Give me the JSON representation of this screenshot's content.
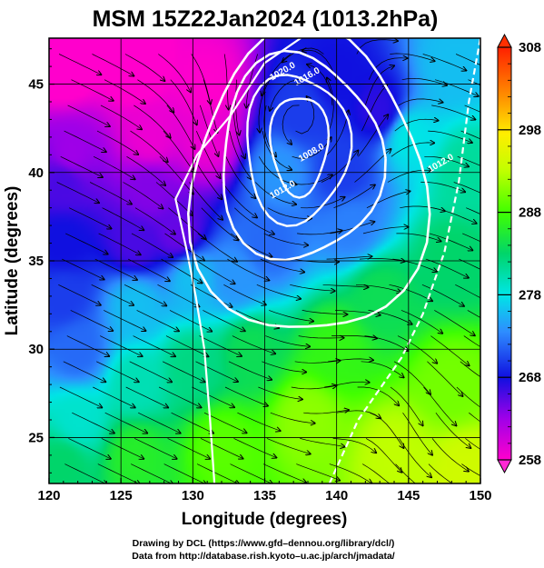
{
  "chart_data": {
    "type": "heatmap",
    "title": "MSM 15Z22Jan2024 (1013.2hPa)",
    "xlabel": "Longitude (degrees)",
    "ylabel": "Latitude  (degrees)",
    "xlim": [
      120,
      150
    ],
    "ylim": [
      22.4,
      47.6
    ],
    "xticks": [
      120,
      125,
      130,
      135,
      140,
      145,
      150
    ],
    "xtick_labels": [
      "120",
      "125",
      "130",
      "135",
      "140",
      "145",
      "150"
    ],
    "yticks": [
      25,
      30,
      35,
      40,
      45
    ],
    "ytick_labels": [
      "25",
      "30",
      "35",
      "40",
      "45"
    ],
    "grid": true,
    "field": {
      "name": "temperature",
      "unit": "K",
      "colorbar_range": [
        258,
        308
      ],
      "colorbar_ticks": [
        258,
        268,
        278,
        288,
        298,
        308
      ],
      "colorbar_tick_labels": [
        "258",
        "268",
        "278",
        "288",
        "298",
        "308"
      ],
      "control_points": [
        {
          "lon": 121,
          "lat": 46,
          "value": 257
        },
        {
          "lon": 126,
          "lat": 46,
          "value": 257
        },
        {
          "lon": 131,
          "lat": 45,
          "value": 258
        },
        {
          "lon": 131,
          "lat": 42,
          "value": 259
        },
        {
          "lon": 127,
          "lat": 42,
          "value": 259
        },
        {
          "lon": 121.5,
          "lat": 41,
          "value": 263
        },
        {
          "lon": 121,
          "lat": 39.5,
          "value": 266
        },
        {
          "lon": 127,
          "lat": 39,
          "value": 264
        },
        {
          "lon": 126,
          "lat": 36,
          "value": 266
        },
        {
          "lon": 129,
          "lat": 36.5,
          "value": 265
        },
        {
          "lon": 121,
          "lat": 36,
          "value": 268
        },
        {
          "lon": 121,
          "lat": 33,
          "value": 270
        },
        {
          "lon": 122,
          "lat": 30,
          "value": 272
        },
        {
          "lon": 126,
          "lat": 32.5,
          "value": 276
        },
        {
          "lon": 130,
          "lat": 34,
          "value": 276
        },
        {
          "lon": 133,
          "lat": 34,
          "value": 274
        },
        {
          "lon": 135,
          "lat": 36,
          "value": 272
        },
        {
          "lon": 136,
          "lat": 40,
          "value": 274
        },
        {
          "lon": 137.5,
          "lat": 43.5,
          "value": 270
        },
        {
          "lon": 140,
          "lat": 45.5,
          "value": 268
        },
        {
          "lon": 143,
          "lat": 43.5,
          "value": 267
        },
        {
          "lon": 140.5,
          "lat": 40,
          "value": 270
        },
        {
          "lon": 141,
          "lat": 37,
          "value": 273
        },
        {
          "lon": 145,
          "lat": 42,
          "value": 278
        },
        {
          "lon": 148,
          "lat": 46,
          "value": 276
        },
        {
          "lon": 149,
          "lat": 40,
          "value": 281
        },
        {
          "lon": 148,
          "lat": 35,
          "value": 283
        },
        {
          "lon": 143,
          "lat": 33,
          "value": 284
        },
        {
          "lon": 140,
          "lat": 30,
          "value": 287
        },
        {
          "lon": 134,
          "lat": 30,
          "value": 284
        },
        {
          "lon": 130,
          "lat": 29,
          "value": 282
        },
        {
          "lon": 126,
          "lat": 28,
          "value": 280
        },
        {
          "lon": 122,
          "lat": 26,
          "value": 279
        },
        {
          "lon": 121,
          "lat": 23.5,
          "value": 283
        },
        {
          "lon": 126,
          "lat": 24,
          "value": 286
        },
        {
          "lon": 132,
          "lat": 24.5,
          "value": 289
        },
        {
          "lon": 138,
          "lat": 26,
          "value": 291
        },
        {
          "lon": 144,
          "lat": 24,
          "value": 293
        },
        {
          "lon": 148,
          "lat": 28,
          "value": 290
        },
        {
          "lon": 149,
          "lat": 23,
          "value": 294
        }
      ]
    },
    "contours": {
      "color": "#ffffff",
      "labels": [
        {
          "text": "1020.0",
          "lon": 135.5,
          "lat": 45.2
        },
        {
          "text": "1016.0",
          "lon": 137.2,
          "lat": 44.9
        },
        {
          "text": "1008.0",
          "lon": 137.5,
          "lat": 40.6
        },
        {
          "text": "1012.0",
          "lon": 135.5,
          "lat": 38.5
        },
        {
          "text": "1012.0",
          "lon": 146.5,
          "lat": 40.0
        }
      ]
    }
  },
  "credits": {
    "line1": "Drawing by DCL (https://www.gfd–dennou.org/library/dcl/)",
    "line2": "Data from http://database.rish.kyoto–u.ac.jp/arch/jmadata/"
  }
}
